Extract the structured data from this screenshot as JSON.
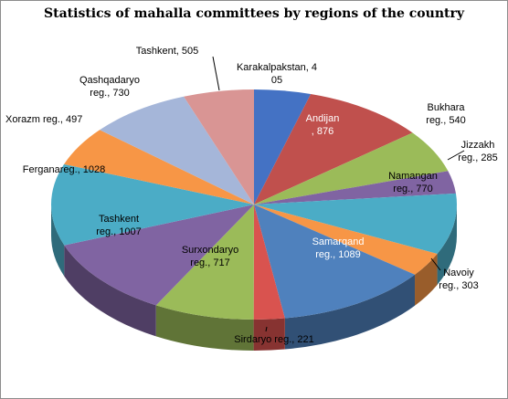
{
  "chart_data": {
    "type": "pie",
    "title": "Statistics of mahalla committees by regions of the country",
    "slices": [
      {
        "label": "Karakalpakstan, 4\n05",
        "value": 405,
        "color": "#4472c4",
        "label_color": "dark"
      },
      {
        "label": "Andijan\n, 876",
        "value": 876,
        "color": "#c0504d",
        "label_color": "light"
      },
      {
        "label": "Bukhara\nreg., 540",
        "value": 540,
        "color": "#9bbb59",
        "label_color": "dark"
      },
      {
        "label": "Jizzakh\nreg., 285",
        "value": 285,
        "color": "#8064a2",
        "label_color": "dark"
      },
      {
        "label": "Namangan\nreg., 770",
        "value": 770,
        "color": "#4bacc6",
        "label_color": "dark"
      },
      {
        "label": "Navoiy\nreg., 303",
        "value": 303,
        "color": "#f79646",
        "label_color": "dark"
      },
      {
        "label": "Samarqand\nreg., 1089",
        "value": 1089,
        "color": "#4f81bd",
        "label_color": "light"
      },
      {
        "label": "Sirdaryo reg., 221",
        "value": 221,
        "color": "#d9534f",
        "label_color": "dark"
      },
      {
        "label": "Surxondaryo\nreg., 717",
        "value": 717,
        "color": "#9bbb59",
        "label_color": "dark"
      },
      {
        "label": "Tashkent\nreg., 1007",
        "value": 1007,
        "color": "#8064a2",
        "label_color": "dark"
      },
      {
        "label": "Ferganareg., 1028",
        "value": 1028,
        "color": "#4bacc6",
        "label_color": "dark"
      },
      {
        "label": "Xorazm reg., 497",
        "value": 497,
        "color": "#f79646",
        "label_color": "dark"
      },
      {
        "label": "Qashqadaryo\nreg., 730",
        "value": 730,
        "color": "#a5b6d9",
        "label_color": "dark"
      },
      {
        "label": "Tashkent, 505",
        "value": 505,
        "color": "#d99594",
        "label_color": "dark"
      }
    ],
    "legend": "none",
    "style": "3d"
  }
}
